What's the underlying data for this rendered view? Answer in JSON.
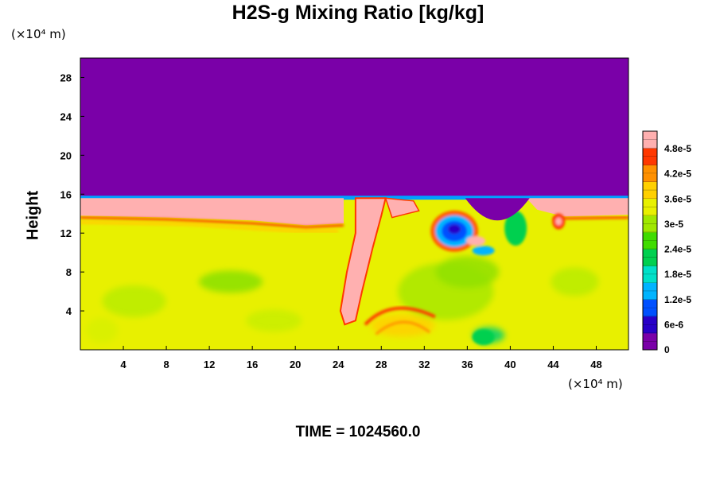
{
  "chart_data": {
    "type": "heatmap",
    "title": "H2S-g Mixing Ratio [kg/kg]",
    "ylabel": "Height",
    "y_unit": "(×10⁴ m)",
    "x_unit": "(×10⁴ m)",
    "xlim": [
      0,
      51
    ],
    "ylim": [
      0,
      30
    ],
    "x_ticks": [
      "4",
      "8",
      "12",
      "16",
      "20",
      "24",
      "28",
      "32",
      "36",
      "40",
      "44",
      "48"
    ],
    "y_ticks": [
      "4",
      "8",
      "12",
      "16",
      "20",
      "24",
      "28"
    ],
    "colorbar": {
      "labels": [
        "0",
        "6e-6",
        "1.2e-5",
        "1.8e-5",
        "2.4e-5",
        "3e-5",
        "3.6e-5",
        "4.2e-5",
        "4.8e-5"
      ],
      "range": [
        0,
        5.1e-05
      ],
      "colors": [
        "#7a00a8",
        "#2800c8",
        "#0050ff",
        "#00b4ff",
        "#00e0c8",
        "#00d050",
        "#40dc00",
        "#a0e800",
        "#e8f000",
        "#ffd000",
        "#ff9000",
        "#ff3800",
        "#ffb0b0"
      ]
    },
    "regions": {
      "upper_value": 0,
      "plume_value": 5.1e-05,
      "background_value": 3.3e-05,
      "layer_top_height": 15.6
    }
  },
  "footer": {
    "time_label": "TIME = 1024560.0"
  }
}
